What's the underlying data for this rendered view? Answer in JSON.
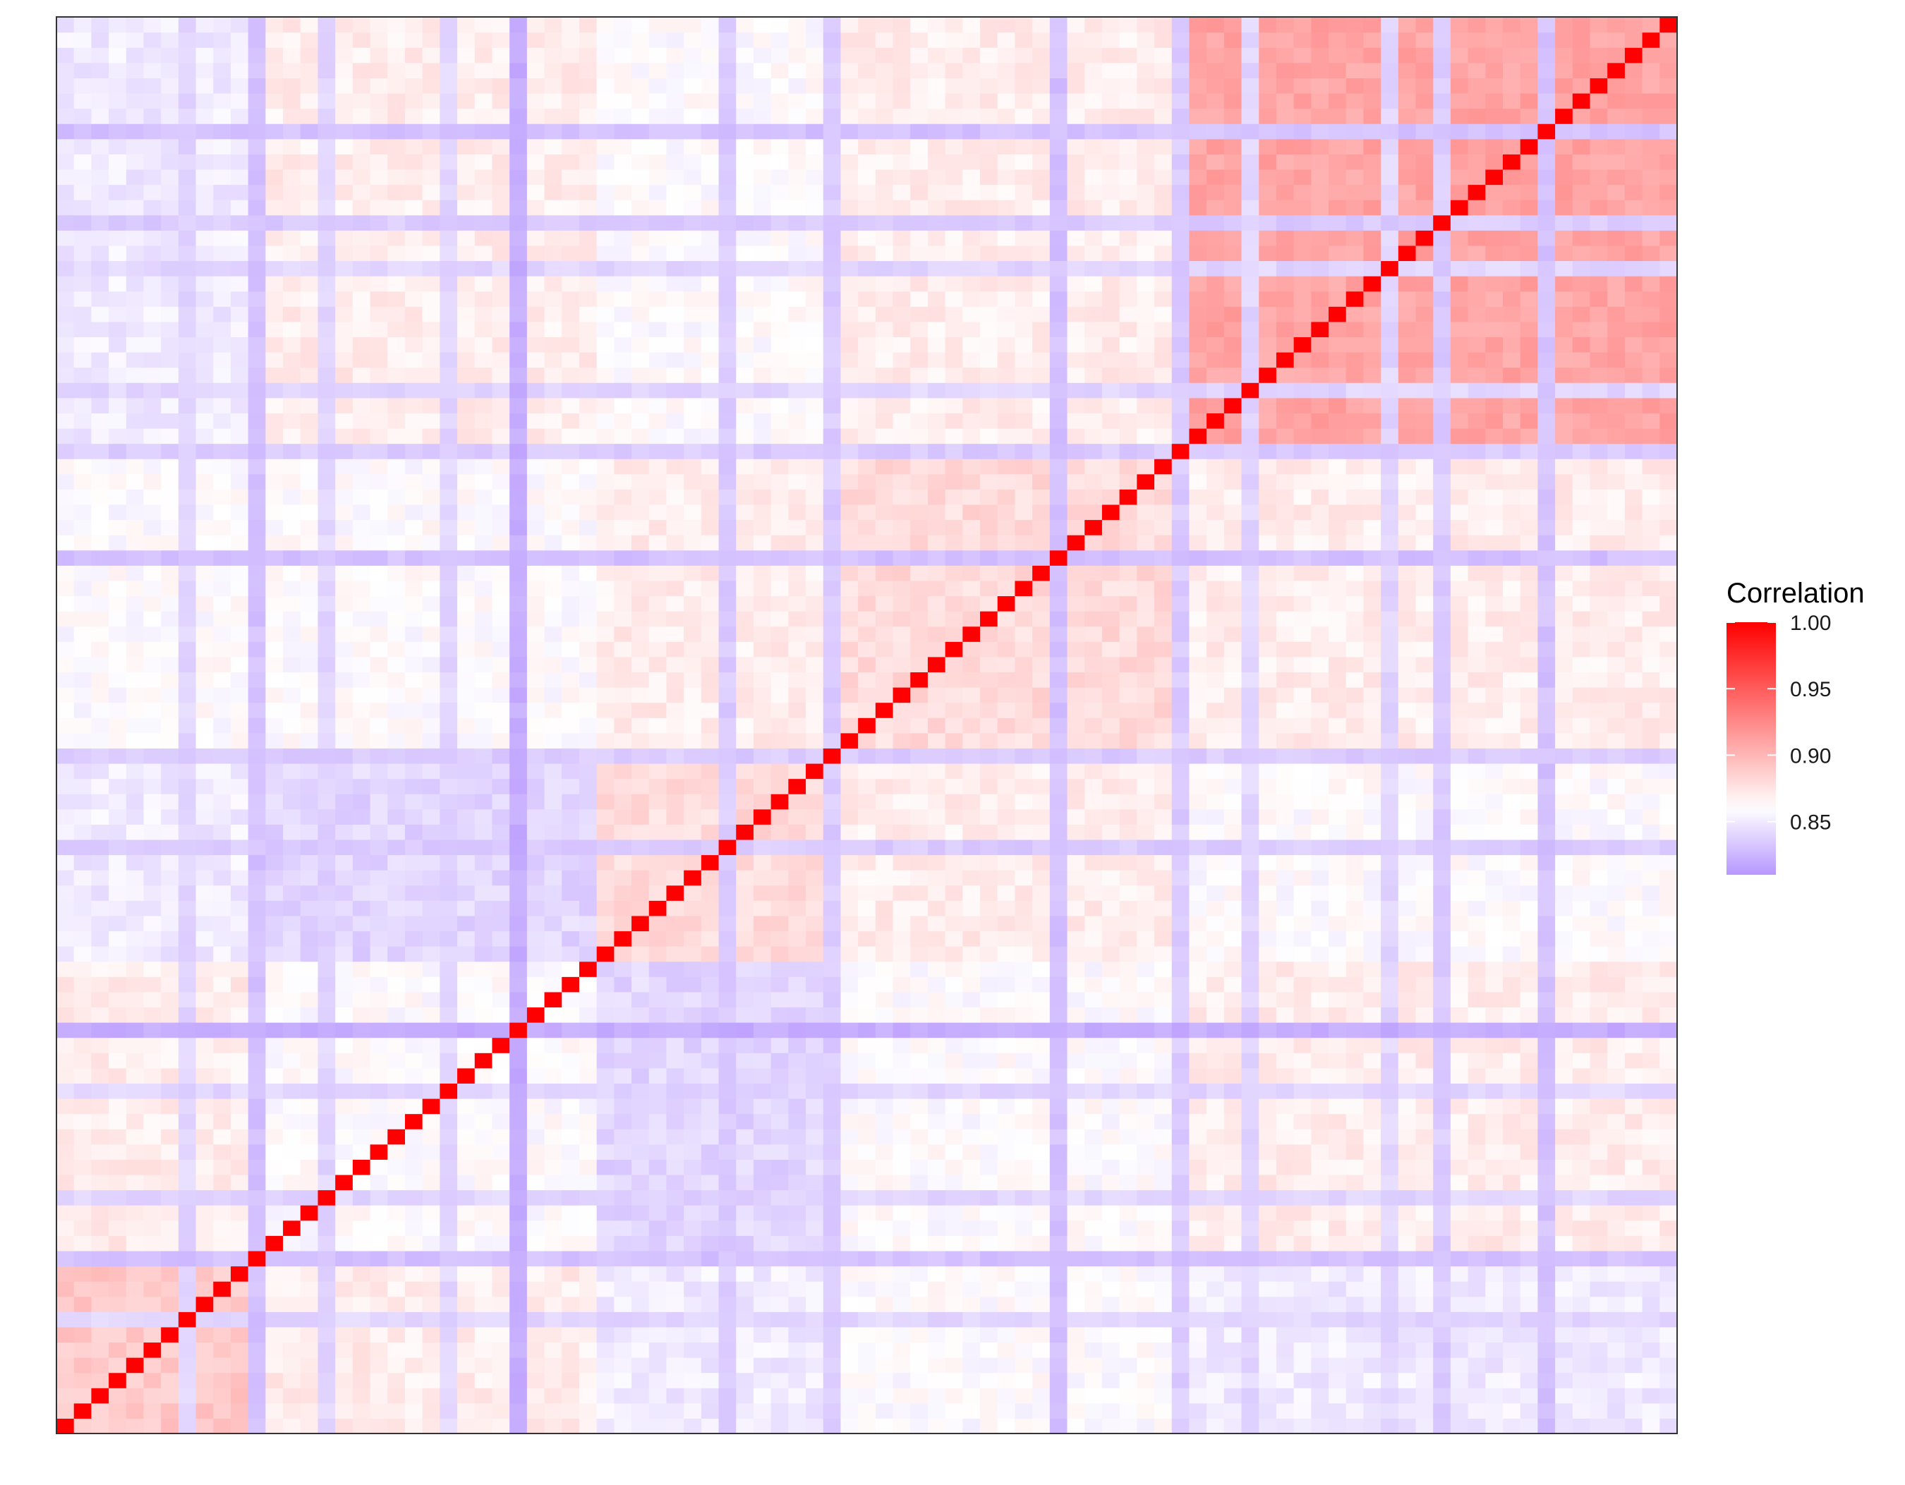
{
  "chart_data": {
    "type": "heatmap",
    "title": "",
    "xlabel": "",
    "ylabel": "",
    "n": 93,
    "matrix_layout": "row 0 is the bottom row; column 0 is the left column; diagonal runs from bottom-left to top-right",
    "color_scale": {
      "low_color": "#B797FF",
      "mid_color": "#FFFFFF",
      "high_color": "#FF0000",
      "low_value": 0.81,
      "mid_value": 0.86,
      "high_value": 1.0
    },
    "legend": {
      "title": "Correlation",
      "placement": "right",
      "ticks": [
        {
          "value": 1.0,
          "label": "1.00"
        },
        {
          "value": 0.95,
          "label": "0.95"
        },
        {
          "value": 0.9,
          "label": "0.90"
        },
        {
          "value": 0.85,
          "label": "0.85"
        }
      ],
      "range": [
        0.81,
        1.0
      ]
    },
    "diagonal_value": 1.0,
    "block_boundaries": [
      11,
      31,
      45,
      65,
      93
    ],
    "block_values": [
      [
        0.89,
        0.87,
        0.85,
        0.86,
        0.85
      ],
      [
        0.87,
        0.86,
        0.84,
        0.86,
        0.87
      ],
      [
        0.85,
        0.84,
        0.88,
        0.87,
        0.86
      ],
      [
        0.86,
        0.86,
        0.87,
        0.88,
        0.87
      ],
      [
        0.85,
        0.87,
        0.86,
        0.87,
        0.91
      ]
    ],
    "row_offsets": [
      0,
      0,
      0,
      0,
      0,
      0,
      0,
      0,
      0,
      0,
      0,
      0,
      0,
      0,
      0,
      0,
      0,
      0,
      0,
      0,
      0,
      0,
      0,
      0,
      0,
      0,
      0,
      0,
      0,
      0,
      0,
      0,
      0,
      0,
      0,
      0,
      0,
      0,
      0,
      0,
      0,
      0,
      0,
      0,
      0,
      0,
      0,
      0,
      0,
      0,
      0,
      0,
      0,
      0,
      0,
      0,
      0,
      0,
      0,
      0,
      0,
      0,
      0,
      0,
      0,
      0,
      0,
      0,
      0,
      0,
      0,
      0,
      0,
      0,
      0,
      0,
      0,
      0,
      0,
      0,
      0,
      0,
      0,
      0,
      0,
      0,
      0,
      0,
      0,
      0,
      0,
      0,
      0
    ],
    "low_rows": [
      7,
      11,
      15,
      22,
      26,
      38,
      44,
      57,
      64,
      68,
      76,
      79,
      85
    ],
    "low_row_values": [
      0.84,
      0.83,
      0.84,
      0.84,
      0.82,
      0.835,
      0.835,
      0.83,
      0.835,
      0.84,
      0.84,
      0.835,
      0.83
    ],
    "low_cols": [
      7,
      11,
      15,
      22,
      26,
      38,
      44,
      57,
      64,
      68,
      76,
      79,
      85
    ],
    "noise": 0.008
  }
}
